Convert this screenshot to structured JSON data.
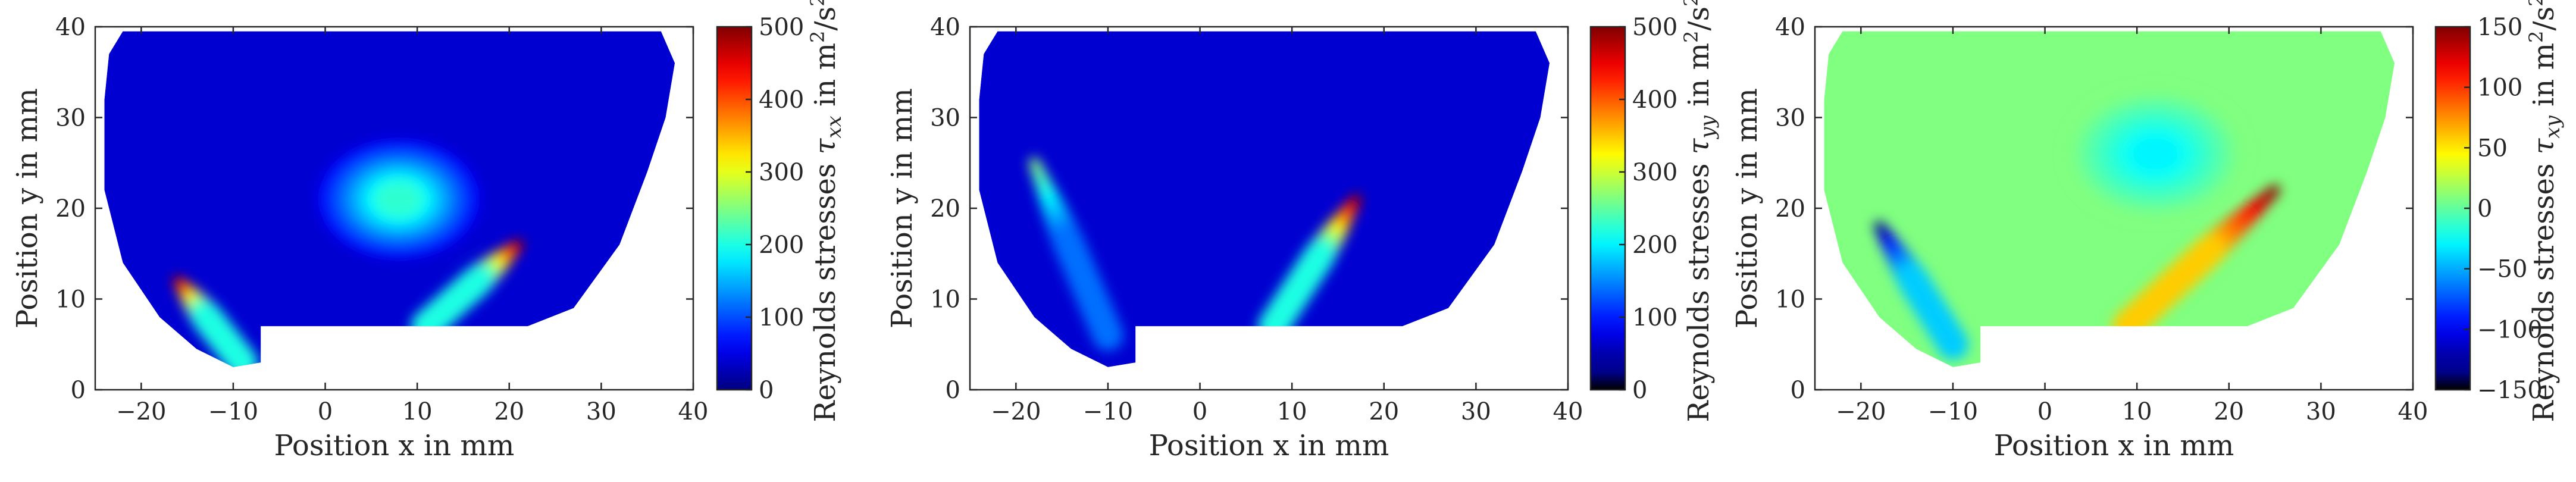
{
  "chart_data": [
    {
      "type": "heatmap",
      "xlabel": "Position x in mm",
      "ylabel": "Position y in mm",
      "xlim": [
        -25,
        40
      ],
      "ylim": [
        0,
        40
      ],
      "xticks": [
        "-20",
        "-10",
        "0",
        "10",
        "20",
        "30",
        "40"
      ],
      "yticks": [
        "0",
        "10",
        "20",
        "30",
        "40"
      ],
      "colorbar": {
        "label_text": "Reynolds stresses",
        "label_symbol": "τ",
        "label_subscript": "xx",
        "label_unit_prefix": "in m",
        "label_unit_exp1": "2",
        "label_unit_mid": "/s",
        "label_unit_exp2": "2",
        "colormap": "jet",
        "range": [
          0,
          500
        ],
        "ticks": [
          "0",
          "100",
          "200",
          "300",
          "400",
          "500"
        ]
      },
      "features": [
        {
          "kind": "jet",
          "from": [
            -9,
            3
          ],
          "to": [
            -16,
            12
          ],
          "peak": 500
        },
        {
          "kind": "jet",
          "from": [
            11,
            7
          ],
          "to": [
            21,
            16
          ],
          "peak": 500
        },
        {
          "kind": "blob",
          "center": [
            8,
            21
          ],
          "peak": 210
        }
      ]
    },
    {
      "type": "heatmap",
      "xlabel": "Position x in mm",
      "ylabel": "Position y in mm",
      "xlim": [
        -25,
        40
      ],
      "ylim": [
        0,
        40
      ],
      "xticks": [
        "-20",
        "-10",
        "0",
        "10",
        "20",
        "30",
        "40"
      ],
      "yticks": [
        "0",
        "10",
        "20",
        "30",
        "40"
      ],
      "colorbar": {
        "label_text": "Reynolds stresses",
        "label_symbol": "τ",
        "label_subscript": "yy",
        "label_unit_prefix": "in m",
        "label_unit_exp1": "2",
        "label_unit_mid": "/s",
        "label_unit_exp2": "2",
        "colormap": "jet",
        "range": [
          0,
          500
        ],
        "ticks": [
          "0",
          "100",
          "200",
          "300",
          "400",
          "500"
        ]
      },
      "features": [
        {
          "kind": "jet",
          "from": [
            8,
            7
          ],
          "to": [
            17,
            21
          ],
          "peak": 500
        },
        {
          "kind": "jet",
          "from": [
            -10,
            6
          ],
          "to": [
            -18,
            25
          ],
          "peak": 260
        }
      ]
    },
    {
      "type": "heatmap",
      "xlabel": "Position x in mm",
      "ylabel": "Position y in mm",
      "xlim": [
        -25,
        40
      ],
      "ylim": [
        0,
        40
      ],
      "xticks": [
        "-20",
        "-10",
        "0",
        "10",
        "20",
        "30",
        "40"
      ],
      "yticks": [
        "0",
        "10",
        "20",
        "30",
        "40"
      ],
      "colorbar": {
        "label_text": "Reynolds stresses",
        "label_symbol": "τ",
        "label_subscript": "xy",
        "label_unit_prefix": "in m",
        "label_unit_exp1": "2",
        "label_unit_mid": "/s",
        "label_unit_exp2": "2",
        "colormap": "jet",
        "range": [
          -150,
          150
        ],
        "ticks": [
          "-150",
          "-100",
          "-50",
          "0",
          "50",
          "100",
          "150"
        ]
      },
      "features": [
        {
          "kind": "jet",
          "from": [
            -10,
            5
          ],
          "to": [
            -18,
            18
          ],
          "peak": -150
        },
        {
          "kind": "jet",
          "from": [
            9,
            7
          ],
          "to": [
            25,
            22
          ],
          "peak": 150
        },
        {
          "kind": "blob",
          "center": [
            12,
            26
          ],
          "peak": -40
        }
      ]
    }
  ]
}
